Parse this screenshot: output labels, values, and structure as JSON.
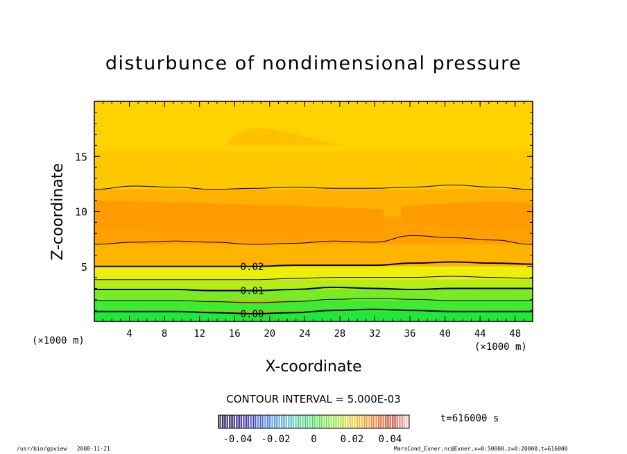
{
  "chart_data": {
    "type": "contour",
    "title": "disturbunce of nondimensional pressure",
    "xlabel": "X-coordinate",
    "ylabel": "Z-coordinate",
    "x_unit": "(×1000 m)",
    "y_unit": "(×1000 m)",
    "xlim": [
      0,
      50
    ],
    "ylim": [
      0,
      20
    ],
    "xticks": [
      4,
      8,
      12,
      16,
      20,
      24,
      28,
      32,
      36,
      40,
      44,
      48
    ],
    "yticks": [
      5,
      10,
      15
    ],
    "contour_interval_label": "CONTOUR INTERVAL = 5.000E-03",
    "time_label": "t=616000 s",
    "colorbar_ticks": [
      "-0.04",
      "-0.02",
      "0",
      "0.02",
      "0.04"
    ],
    "colorbar_values": [
      -0.04,
      -0.02,
      0,
      0.02,
      0.04
    ],
    "color_levels": [
      "#20e83a",
      "#5ce82a",
      "#9aec1e",
      "#d6ef10",
      "#ffe000",
      "#ffd400",
      "#ffc000",
      "#ffa800",
      "#ff9c00"
    ],
    "contour_lines": [
      {
        "level": 0.0,
        "label": "0.00",
        "z": [
          0.9,
          0.9,
          0.9,
          0.8,
          0.7,
          0.8,
          1.0,
          1.1,
          1.0,
          0.9,
          0.9,
          0.9
        ]
      },
      {
        "level": 0.005,
        "label": "",
        "z": [
          1.9,
          1.9,
          1.9,
          1.8,
          1.7,
          1.8,
          2.0,
          2.1,
          2.0,
          1.9,
          1.9,
          1.9
        ]
      },
      {
        "level": 0.01,
        "label": "0.01",
        "z": [
          2.9,
          2.9,
          2.9,
          2.8,
          2.8,
          2.9,
          3.1,
          3.0,
          2.9,
          3.0,
          3.0,
          3.0
        ]
      },
      {
        "level": 0.015,
        "label": "",
        "z": [
          3.8,
          3.8,
          3.8,
          3.8,
          3.8,
          3.9,
          4.0,
          4.0,
          4.0,
          4.1,
          4.0,
          3.9
        ]
      },
      {
        "level": 0.02,
        "label": "0.02",
        "z": [
          5.0,
          5.0,
          5.0,
          5.0,
          5.0,
          5.1,
          5.1,
          5.1,
          5.3,
          5.4,
          5.3,
          5.2
        ]
      },
      {
        "level": 0.025,
        "label": "",
        "z": [
          7.0,
          7.2,
          7.3,
          7.2,
          7.0,
          7.1,
          7.3,
          7.2,
          7.8,
          7.6,
          7.4,
          7.0
        ]
      },
      {
        "level": 0.03,
        "label": "",
        "z": [
          12.0,
          12.3,
          12.2,
          12.0,
          12.1,
          12.2,
          12.1,
          12.1,
          12.2,
          12.4,
          12.2,
          12.0
        ]
      }
    ]
  },
  "footer": {
    "left": "/usr/bin/gpview   2008-11-21",
    "right": "MarsCond_Exner.nc@Exner,x=0:50000,z=0:20000,t=616000"
  },
  "colors": {
    "band_low": "#20e83a",
    "band_high": "#ff9c00",
    "frame": "#000000"
  }
}
